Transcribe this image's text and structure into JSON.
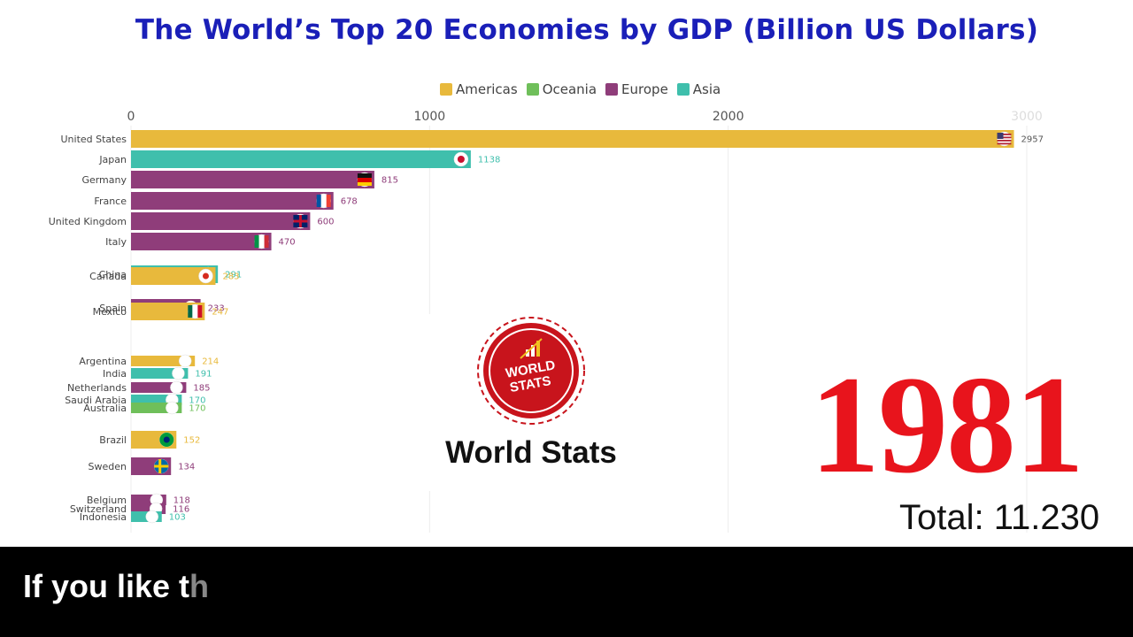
{
  "video": {
    "caption_main": "If you like t",
    "caption_fade": "h"
  },
  "overlay": {
    "year": "1981",
    "total_label": "Total:",
    "total_value": "11.230",
    "logo_text": "World Stats",
    "logo_badge_line1": "WORLD",
    "logo_badge_line2": "STATS"
  },
  "colors": {
    "Americas": "#e8b93c",
    "Oceania": "#6fbf5a",
    "Europe": "#8f3d7a",
    "Asia": "#3fbfac",
    "title": "#1a1fb8",
    "year": "#e8141c"
  },
  "chart_data": {
    "type": "bar",
    "orientation": "horizontal",
    "title": "The World’s Top 20 Economies by GDP (Billion US Dollars)",
    "legend": [
      "Americas",
      "Oceania",
      "Europe",
      "Asia"
    ],
    "legend_position": "top",
    "xlim": [
      0,
      3000
    ],
    "xticks": [
      0,
      1000,
      2000,
      3000
    ],
    "grid": true,
    "bars": [
      {
        "country": "United States",
        "value": 2957,
        "label": "2957",
        "region": "Americas",
        "flag": "us-flag-icon"
      },
      {
        "country": "Japan",
        "value": 1138,
        "label": "1138",
        "region": "Asia",
        "flag": "japan-flag-icon"
      },
      {
        "country": "Germany",
        "value": 815,
        "label": "815",
        "region": "Europe",
        "flag": "germany-flag-icon"
      },
      {
        "country": "France",
        "value": 678,
        "label": "678",
        "region": "Europe",
        "flag": "france-flag-icon"
      },
      {
        "country": "United Kingdom",
        "value": 600,
        "label": "600",
        "region": "Europe",
        "flag": "uk-flag-icon"
      },
      {
        "country": "Italy",
        "value": 470,
        "label": "470",
        "region": "Europe",
        "flag": "italy-flag-icon"
      },
      {
        "country": "China",
        "value": 291,
        "label": "291",
        "region": "Asia",
        "flag": "china-flag-icon"
      },
      {
        "country": "Canada",
        "value": 283,
        "label": "283",
        "region": "Americas",
        "flag": "canada-flag-icon"
      },
      {
        "country": "Spain",
        "value": 233,
        "label": "233",
        "region": "Europe",
        "flag": "spain-flag-icon"
      },
      {
        "country": "Mexico",
        "value": 247,
        "label": "247",
        "region": "Americas",
        "flag": "mexico-flag-icon"
      },
      {
        "country": "Argentina",
        "value": 214,
        "label": "214",
        "region": "Americas",
        "flag": "argentina-flag-icon"
      },
      {
        "country": "India",
        "value": 191,
        "label": "191",
        "region": "Asia",
        "flag": "india-flag-icon"
      },
      {
        "country": "Netherlands",
        "value": 185,
        "label": "185",
        "region": "Europe",
        "flag": "netherlands-flag-icon"
      },
      {
        "country": "Saudi Arabia",
        "value": 170,
        "label": "170",
        "region": "Asia",
        "flag": "saudi-flag-icon"
      },
      {
        "country": "Australia",
        "value": 170,
        "label": "170",
        "region": "Oceania",
        "flag": "australia-flag-icon"
      },
      {
        "country": "Brazil",
        "value": 152,
        "label": "152",
        "region": "Americas",
        "flag": "brazil-flag-icon"
      },
      {
        "country": "Sweden",
        "value": 134,
        "label": "134",
        "region": "Europe",
        "flag": "sweden-flag-icon"
      },
      {
        "country": "Belgium",
        "value": 118,
        "label": "118",
        "region": "Europe",
        "flag": "belgium-flag-icon"
      },
      {
        "country": "Switzerland",
        "value": 116,
        "label": "116",
        "region": "Europe",
        "flag": "switzerland-flag-icon"
      },
      {
        "country": "Indonesia",
        "value": 103,
        "label": "103",
        "region": "Asia",
        "flag": "indonesia-flag-icon"
      }
    ]
  }
}
